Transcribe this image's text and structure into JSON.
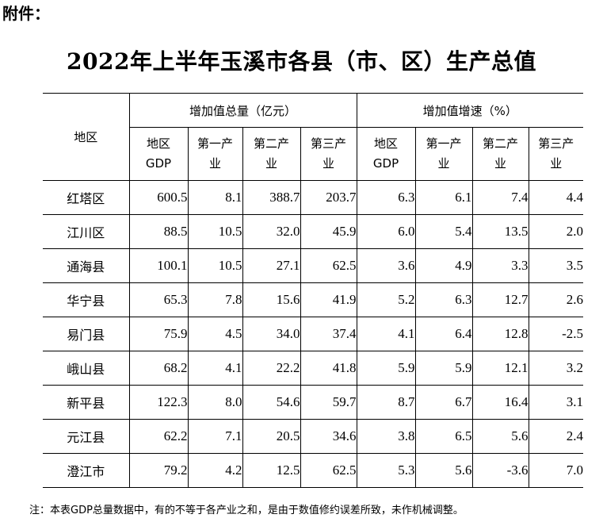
{
  "header": {
    "attachment_label": "附件：",
    "title": "2022年上半年玉溪市各县（市、区）生产总值"
  },
  "table": {
    "region_header": "地区",
    "group_total": "增加值总量（亿元）",
    "group_growth": "增加值增速（%）",
    "sub_headers": {
      "gdp_line1": "地区",
      "gdp_line2": "GDP",
      "primary_line1": "第一产",
      "primary_line2": "业",
      "secondary_line1": "第二产",
      "secondary_line2": "业",
      "tertiary_line1": "第三产",
      "tertiary_line2": "业"
    },
    "rows": [
      {
        "region": "红塔区",
        "values": [
          "600.5",
          "8.1",
          "388.7",
          "203.7",
          "6.3",
          "6.1",
          "7.4",
          "4.4"
        ]
      },
      {
        "region": "江川区",
        "values": [
          "88.5",
          "10.5",
          "32.0",
          "45.9",
          "6.0",
          "5.4",
          "13.5",
          "2.0"
        ]
      },
      {
        "region": "通海县",
        "values": [
          "100.1",
          "10.5",
          "27.1",
          "62.5",
          "3.6",
          "4.9",
          "3.3",
          "3.5"
        ]
      },
      {
        "region": "华宁县",
        "values": [
          "65.3",
          "7.8",
          "15.6",
          "41.9",
          "5.2",
          "6.3",
          "12.7",
          "2.6"
        ]
      },
      {
        "region": "易门县",
        "values": [
          "75.9",
          "4.5",
          "34.0",
          "37.4",
          "4.1",
          "6.4",
          "12.8",
          "-2.5"
        ]
      },
      {
        "region": "峨山县",
        "values": [
          "68.2",
          "4.1",
          "22.2",
          "41.8",
          "5.9",
          "5.9",
          "12.1",
          "3.2"
        ]
      },
      {
        "region": "新平县",
        "values": [
          "122.3",
          "8.0",
          "54.6",
          "59.7",
          "8.7",
          "6.7",
          "16.4",
          "3.1"
        ]
      },
      {
        "region": "元江县",
        "values": [
          "62.2",
          "7.1",
          "20.5",
          "34.6",
          "3.8",
          "6.5",
          "5.6",
          "2.4"
        ]
      },
      {
        "region": "澄江市",
        "values": [
          "79.2",
          "4.2",
          "12.5",
          "62.5",
          "5.3",
          "5.6",
          "-3.6",
          "7.0"
        ]
      }
    ]
  },
  "footer": {
    "note": "注：本表GDP总量数据中，有的不等于各产业之和，是由于数值修约误差所致，未作机械调整。"
  }
}
